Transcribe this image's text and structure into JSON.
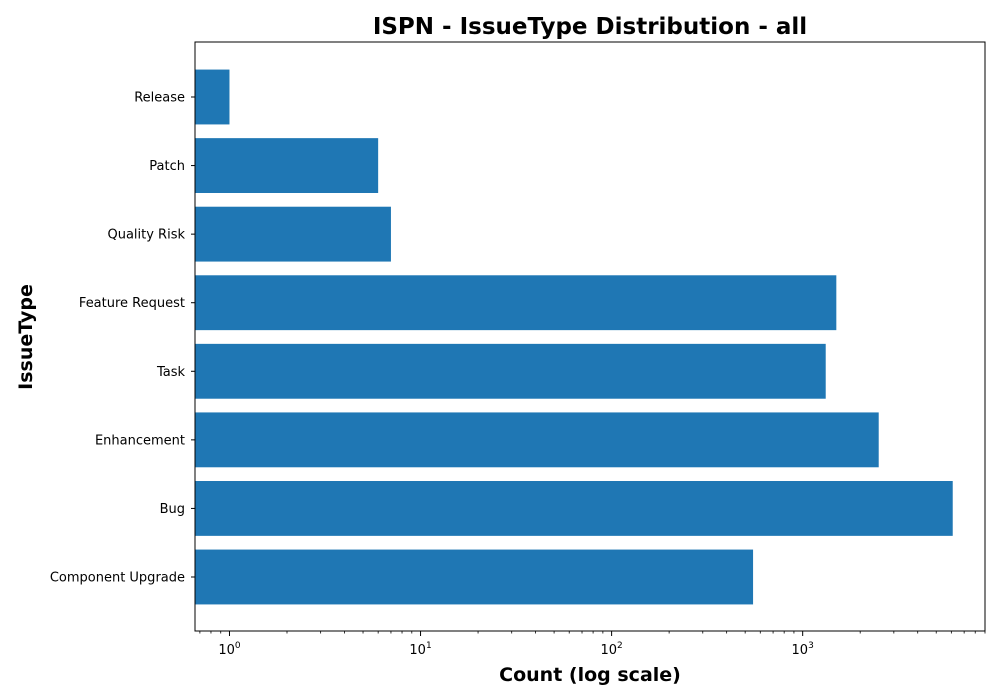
{
  "chart_data": {
    "type": "bar",
    "orientation": "horizontal",
    "title": "ISPN - IssueType Distribution - all",
    "xlabel": "Count (log scale)",
    "ylabel": "IssueType",
    "x_scale": "log",
    "xlim": [
      0.66,
      9000
    ],
    "x_ticks": [
      {
        "value": 1,
        "base": "10",
        "exp": "0"
      },
      {
        "value": 10,
        "base": "10",
        "exp": "1"
      },
      {
        "value": 100,
        "base": "10",
        "exp": "2"
      },
      {
        "value": 1000,
        "base": "10",
        "exp": "3"
      }
    ],
    "categories": [
      "Component Upgrade",
      "Bug",
      "Enhancement",
      "Task",
      "Feature Request",
      "Quality Risk",
      "Patch",
      "Release"
    ],
    "values": [
      550,
      6100,
      2500,
      1320,
      1500,
      7,
      6,
      1
    ],
    "color": "#1f77b4",
    "grid": false
  }
}
